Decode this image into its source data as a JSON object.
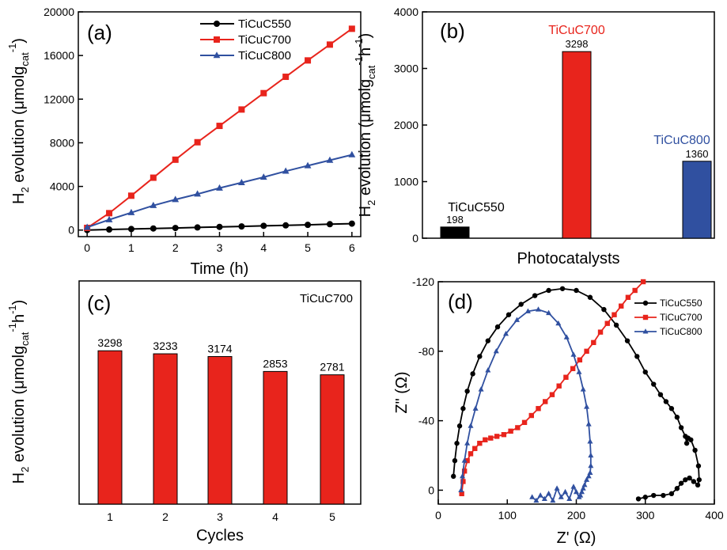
{
  "chart_data": [
    {
      "panel": "(a)",
      "type": "line",
      "xlabel": "Time (h)",
      "ylabel": {
        "prefix": "H",
        "sub1": "2",
        "mid": " evolution (μmolg",
        "sub2": "cat",
        "sup": "-1",
        "end": ")"
      },
      "xlim": [
        -0.2,
        6.2
      ],
      "ylim": [
        -600,
        20000
      ],
      "xticks": [
        "0",
        "1",
        "2",
        "3",
        "4",
        "5",
        "6"
      ],
      "yticks": [
        "0",
        "4000",
        "8000",
        "12000",
        "16000",
        "20000"
      ],
      "legend_position": "top-right",
      "series": [
        {
          "name": "TiCuC550",
          "color": "#000000",
          "marker": "circle",
          "x": [
            0,
            0.5,
            1,
            1.5,
            2,
            2.5,
            3,
            3.5,
            4,
            4.5,
            5,
            5.5,
            6
          ],
          "values": [
            0,
            50,
            95,
            145,
            190,
            240,
            290,
            335,
            390,
            430,
            480,
            540,
            590
          ]
        },
        {
          "name": "TiCuC700",
          "color": "#e8241c",
          "marker": "square",
          "x": [
            0,
            0.5,
            1,
            1.5,
            2,
            2.5,
            3,
            3.5,
            4,
            4.5,
            5,
            5.5,
            6
          ],
          "values": [
            200,
            1550,
            3150,
            4800,
            6450,
            8050,
            9550,
            11050,
            12550,
            14050,
            15550,
            17000,
            18450
          ]
        },
        {
          "name": "TiCuC800",
          "color": "#3050a0",
          "marker": "triangle",
          "x": [
            0,
            0.5,
            1,
            1.5,
            2,
            2.5,
            3,
            3.5,
            4,
            4.5,
            5,
            5.5,
            6
          ],
          "values": [
            250,
            950,
            1600,
            2250,
            2800,
            3300,
            3850,
            4350,
            4850,
            5400,
            5900,
            6400,
            6900
          ]
        }
      ]
    },
    {
      "panel": "(b)",
      "type": "bar",
      "xlabel": "Photocatalysts",
      "ylabel": {
        "prefix": "H",
        "sub1": "2",
        "mid": " evolution (μmolg",
        "sub2": "cat",
        "sup": "-1",
        "mid2": "h",
        "sup2": "-1",
        "end": ")"
      },
      "ylim": [
        0,
        4000
      ],
      "yticks": [
        "0",
        "1000",
        "2000",
        "3000",
        "4000"
      ],
      "categories": [
        "TiCuC550",
        "TiCuC700",
        "TiCuC800"
      ],
      "values": [
        198,
        3298,
        1360
      ],
      "value_labels": [
        "198",
        "3298",
        "1360"
      ],
      "colors": [
        "#000000",
        "#e8241c",
        "#3050a0"
      ]
    },
    {
      "panel": "(c)",
      "type": "bar",
      "annotation": "TiCuC700",
      "xlabel": "Cycles",
      "ylabel": {
        "prefix": "H",
        "sub1": "2",
        "mid": " evolution (μmolg",
        "sub2": "cat",
        "sup": "-1",
        "mid2": "h",
        "sup2": "-1",
        "end": ")"
      },
      "ylim": [
        0,
        4800
      ],
      "categories": [
        "1",
        "2",
        "3",
        "4",
        "5"
      ],
      "values": [
        3298,
        3233,
        3174,
        2853,
        2781
      ],
      "value_labels": [
        "3298",
        "3233",
        "3174",
        "2853",
        "2781"
      ],
      "color": "#e8241c"
    },
    {
      "panel": "(d)",
      "type": "scatter",
      "xlabel": "Z' (Ω)",
      "ylabel": "Z\" (Ω)",
      "xlim": [
        0,
        400
      ],
      "ylim": [
        -120,
        8
      ],
      "y_inverted": true,
      "xticks": [
        "0",
        "100",
        "200",
        "300",
        "400"
      ],
      "yticks": [
        "-120",
        "-80",
        "-40",
        "0"
      ],
      "legend_position": "top-right",
      "series": [
        {
          "name": "TiCuC550",
          "color": "#000000",
          "marker": "circle",
          "x": [
            22,
            24,
            27,
            31,
            36,
            42,
            50,
            60,
            72,
            86,
            102,
            120,
            140,
            160,
            180,
            200,
            220,
            240,
            258,
            274,
            288,
            300,
            312,
            322,
            330,
            338,
            346,
            352,
            358,
            360,
            362,
            366,
            372,
            377,
            378,
            376,
            370,
            364,
            358,
            352,
            346,
            338,
            326,
            312,
            300,
            290
          ],
          "values": [
            -8,
            -17,
            -27,
            -37,
            -47,
            -57,
            -67,
            -77,
            -86,
            -94,
            -101,
            -107,
            -112,
            -115,
            -116,
            -115,
            -111,
            -104,
            -95,
            -86,
            -77,
            -68,
            -61,
            -55,
            -51,
            -47,
            -42,
            -36,
            -31,
            -27,
            -30,
            -29,
            -23,
            -14,
            -6,
            -3,
            -5,
            -7,
            -6,
            -4,
            -1,
            2,
            3,
            3,
            4,
            5
          ]
        },
        {
          "name": "TiCuC700",
          "color": "#e8241c",
          "marker": "square",
          "x": [
            34,
            36,
            38,
            42,
            47,
            53,
            60,
            68,
            76,
            85,
            95,
            105,
            115,
            125,
            135,
            145,
            155,
            165,
            175,
            185,
            195,
            205,
            215,
            225,
            235,
            245,
            255,
            265,
            275,
            285,
            297
          ],
          "values": [
            2,
            -5,
            -11,
            -17,
            -21,
            -24,
            -27,
            -29,
            -30,
            -31,
            -32,
            -34,
            -36,
            -39,
            -43,
            -47,
            -51,
            -55,
            -60,
            -65,
            -70,
            -75,
            -80,
            -85,
            -91,
            -96,
            -101,
            -106,
            -111,
            -115,
            -120
          ]
        },
        {
          "name": "TiCuC800",
          "color": "#3050a0",
          "marker": "triangle",
          "x": [
            33,
            35,
            38,
            42,
            47,
            54,
            62,
            72,
            84,
            98,
            114,
            130,
            145,
            160,
            174,
            186,
            196,
            204,
            210,
            215,
            218,
            220,
            221,
            221,
            220,
            218,
            215,
            212,
            210,
            208,
            206,
            204,
            200,
            196,
            190,
            184,
            178,
            172,
            166,
            160,
            154,
            148,
            142,
            136
          ],
          "values": [
            0,
            -8,
            -17,
            -27,
            -37,
            -47,
            -58,
            -69,
            -80,
            -90,
            -98,
            -103,
            -104,
            -102,
            -96,
            -88,
            -78,
            -68,
            -58,
            -48,
            -38,
            -28,
            -20,
            -14,
            -10,
            -8,
            -6,
            -3,
            -1,
            1,
            3,
            4,
            1,
            -2,
            5,
            1,
            4,
            -1,
            6,
            2,
            5,
            3,
            6,
            4
          ]
        }
      ]
    }
  ]
}
